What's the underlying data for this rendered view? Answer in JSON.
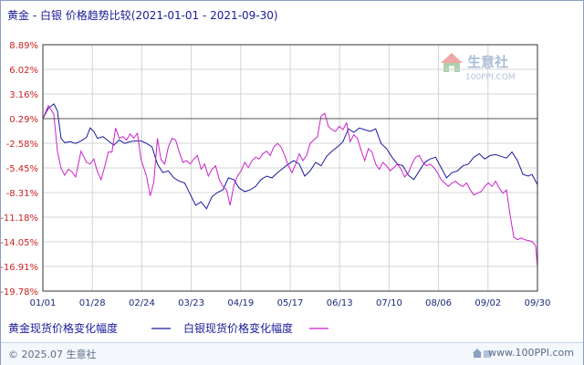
{
  "header": {
    "title": "黄金 - 白银  价格趋势比较(2021-01-01 - 2021-09-30)"
  },
  "watermark": {
    "name": "生意社",
    "url": "100PPI.COM"
  },
  "footer": {
    "copyright": "© 2025.07 生意社",
    "site": "www.100PPI.com"
  },
  "colors": {
    "gold": "#1a1aa0",
    "silver": "#cc22cc",
    "axis": "#333333",
    "grid": "#d4d4d4"
  },
  "chart_data": {
    "type": "line",
    "title": "黄金 - 白银  价格趋势比较(2021-01-01 - 2021-09-30)",
    "x_ticks": [
      "01/01",
      "01/28",
      "02/24",
      "03/23",
      "04/19",
      "05/17",
      "06/13",
      "07/10",
      "08/06",
      "09/02",
      "09/30"
    ],
    "y_ticks": [
      "8.89%",
      "6.02%",
      "3.16%",
      "0.29%",
      "-2.58%",
      "-5.45%",
      "-8.31%",
      "-11.18%",
      "-14.05%",
      "-16.91%",
      "-19.78%"
    ],
    "ylim": [
      -19.78,
      8.89
    ],
    "xlim": [
      0,
      272
    ],
    "grid": true,
    "baseline": 0.29,
    "legend_position": "bottom",
    "series": [
      {
        "name": "黄金现货价格变化幅度",
        "color": "#1a1aa0",
        "points": [
          [
            0,
            0.29
          ],
          [
            3,
            1.5
          ],
          [
            6,
            2.0
          ],
          [
            8,
            1.2
          ],
          [
            10,
            -2.0
          ],
          [
            12,
            -2.5
          ],
          [
            15,
            -2.4
          ],
          [
            18,
            -2.6
          ],
          [
            21,
            -2.3
          ],
          [
            24,
            -1.9
          ],
          [
            26,
            -0.8
          ],
          [
            28,
            -1.2
          ],
          [
            30,
            -2.0
          ],
          [
            33,
            -1.8
          ],
          [
            36,
            -2.3
          ],
          [
            39,
            -2.8
          ],
          [
            42,
            -2.2
          ],
          [
            45,
            -2.6
          ],
          [
            48,
            -2.4
          ],
          [
            51,
            -2.3
          ],
          [
            54,
            -2.3
          ],
          [
            57,
            -2.6
          ],
          [
            60,
            -3.0
          ],
          [
            63,
            -5.0
          ],
          [
            66,
            -6.0
          ],
          [
            69,
            -5.8
          ],
          [
            72,
            -6.6
          ],
          [
            75,
            -7.0
          ],
          [
            78,
            -7.2
          ],
          [
            81,
            -8.5
          ],
          [
            84,
            -9.8
          ],
          [
            87,
            -9.4
          ],
          [
            90,
            -10.2
          ],
          [
            93,
            -8.8
          ],
          [
            96,
            -8.3
          ],
          [
            99,
            -8.0
          ],
          [
            102,
            -6.6
          ],
          [
            105,
            -6.8
          ],
          [
            108,
            -7.8
          ],
          [
            111,
            -8.2
          ],
          [
            114,
            -8.0
          ],
          [
            117,
            -7.6
          ],
          [
            120,
            -6.8
          ],
          [
            123,
            -6.4
          ],
          [
            126,
            -6.6
          ],
          [
            129,
            -6.0
          ],
          [
            132,
            -5.5
          ],
          [
            135,
            -5.0
          ],
          [
            138,
            -4.6
          ],
          [
            141,
            -5.0
          ],
          [
            144,
            -6.4
          ],
          [
            147,
            -5.8
          ],
          [
            150,
            -4.8
          ],
          [
            153,
            -5.2
          ],
          [
            156,
            -4.1
          ],
          [
            159,
            -3.5
          ],
          [
            162,
            -3.0
          ],
          [
            165,
            -2.4
          ],
          [
            168,
            -0.9
          ],
          [
            171,
            -1.3
          ],
          [
            174,
            -0.8
          ],
          [
            177,
            -1.0
          ],
          [
            180,
            -1.2
          ],
          [
            183,
            -0.9
          ],
          [
            186,
            -2.6
          ],
          [
            189,
            -3.2
          ],
          [
            192,
            -4.2
          ],
          [
            195,
            -5.0
          ],
          [
            198,
            -5.2
          ],
          [
            201,
            -6.3
          ],
          [
            204,
            -6.8
          ],
          [
            207,
            -5.8
          ],
          [
            210,
            -4.8
          ],
          [
            213,
            -4.4
          ],
          [
            216,
            -4.2
          ],
          [
            219,
            -5.4
          ],
          [
            222,
            -6.6
          ],
          [
            225,
            -6.0
          ],
          [
            228,
            -5.8
          ],
          [
            231,
            -5.2
          ],
          [
            234,
            -5.0
          ],
          [
            237,
            -4.2
          ],
          [
            240,
            -3.8
          ],
          [
            243,
            -4.4
          ],
          [
            246,
            -4.0
          ],
          [
            249,
            -3.9
          ],
          [
            252,
            -4.1
          ],
          [
            255,
            -4.3
          ],
          [
            258,
            -3.6
          ],
          [
            261,
            -4.6
          ],
          [
            264,
            -6.2
          ],
          [
            267,
            -6.4
          ],
          [
            269,
            -6.2
          ],
          [
            272,
            -7.4
          ]
        ]
      },
      {
        "name": "白银现货价格变化幅度",
        "color": "#cc22cc",
        "points": [
          [
            0,
            0.29
          ],
          [
            3,
            1.8
          ],
          [
            6,
            0.8
          ],
          [
            8,
            -3.5
          ],
          [
            10,
            -5.5
          ],
          [
            12,
            -6.3
          ],
          [
            14,
            -5.6
          ],
          [
            16,
            -5.9
          ],
          [
            18,
            -6.5
          ],
          [
            21,
            -3.5
          ],
          [
            24,
            -4.8
          ],
          [
            26,
            -5.0
          ],
          [
            28,
            -4.4
          ],
          [
            30,
            -5.9
          ],
          [
            32,
            -6.8
          ],
          [
            34,
            -5.3
          ],
          [
            36,
            -3.6
          ],
          [
            38,
            -3.6
          ],
          [
            40,
            -0.8
          ],
          [
            42,
            -2.0
          ],
          [
            44,
            -1.8
          ],
          [
            46,
            -2.2
          ],
          [
            48,
            -1.5
          ],
          [
            50,
            -2.0
          ],
          [
            52,
            -1.4
          ],
          [
            54,
            -4.5
          ],
          [
            57,
            -6.4
          ],
          [
            59,
            -8.7
          ],
          [
            61,
            -7.1
          ],
          [
            63,
            -2.0
          ],
          [
            65,
            -4.5
          ],
          [
            67,
            -5.0
          ],
          [
            69,
            -3.0
          ],
          [
            71,
            -2.0
          ],
          [
            73,
            -2.2
          ],
          [
            75,
            -3.6
          ],
          [
            77,
            -4.8
          ],
          [
            79,
            -4.6
          ],
          [
            81,
            -5.0
          ],
          [
            83,
            -4.4
          ],
          [
            85,
            -4.0
          ],
          [
            87,
            -5.6
          ],
          [
            89,
            -5.0
          ],
          [
            91,
            -6.4
          ],
          [
            93,
            -5.6
          ],
          [
            95,
            -5.2
          ],
          [
            97,
            -6.8
          ],
          [
            99,
            -7.6
          ],
          [
            101,
            -8.0
          ],
          [
            103,
            -9.8
          ],
          [
            105,
            -7.5
          ],
          [
            107,
            -6.4
          ],
          [
            109,
            -5.8
          ],
          [
            111,
            -4.8
          ],
          [
            113,
            -5.4
          ],
          [
            115,
            -4.6
          ],
          [
            117,
            -4.2
          ],
          [
            119,
            -4.4
          ],
          [
            121,
            -3.8
          ],
          [
            123,
            -3.5
          ],
          [
            125,
            -4.0
          ],
          [
            127,
            -3.0
          ],
          [
            129,
            -2.6
          ],
          [
            131,
            -3.0
          ],
          [
            133,
            -4.0
          ],
          [
            135,
            -5.2
          ],
          [
            137,
            -6.0
          ],
          [
            139,
            -5.0
          ],
          [
            141,
            -3.8
          ],
          [
            143,
            -4.6
          ],
          [
            145,
            -4.0
          ],
          [
            147,
            -2.6
          ],
          [
            149,
            -2.2
          ],
          [
            151,
            -1.8
          ],
          [
            153,
            0.6
          ],
          [
            155,
            0.9
          ],
          [
            157,
            -0.6
          ],
          [
            159,
            -1.0
          ],
          [
            161,
            -1.2
          ],
          [
            163,
            -0.6
          ],
          [
            165,
            -1.0
          ],
          [
            167,
            -0.2
          ],
          [
            169,
            -2.4
          ],
          [
            171,
            -1.6
          ],
          [
            173,
            -2.0
          ],
          [
            175,
            -3.4
          ],
          [
            177,
            -4.6
          ],
          [
            179,
            -3.2
          ],
          [
            181,
            -3.6
          ],
          [
            183,
            -5.0
          ],
          [
            185,
            -5.6
          ],
          [
            187,
            -4.8
          ],
          [
            189,
            -5.2
          ],
          [
            191,
            -5.8
          ],
          [
            193,
            -5.4
          ],
          [
            195,
            -5.0
          ],
          [
            197,
            -5.6
          ],
          [
            199,
            -6.5
          ],
          [
            201,
            -6.0
          ],
          [
            203,
            -5.0
          ],
          [
            205,
            -4.2
          ],
          [
            207,
            -4.0
          ],
          [
            209,
            -4.8
          ],
          [
            211,
            -5.2
          ],
          [
            213,
            -5.0
          ],
          [
            215,
            -5.4
          ],
          [
            217,
            -6.0
          ],
          [
            219,
            -6.8
          ],
          [
            221,
            -7.2
          ],
          [
            223,
            -7.6
          ],
          [
            225,
            -7.2
          ],
          [
            227,
            -7.0
          ],
          [
            229,
            -7.4
          ],
          [
            231,
            -7.6
          ],
          [
            233,
            -7.2
          ],
          [
            235,
            -8.0
          ],
          [
            237,
            -8.6
          ],
          [
            239,
            -8.4
          ],
          [
            241,
            -8.2
          ],
          [
            243,
            -7.6
          ],
          [
            245,
            -7.2
          ],
          [
            247,
            -7.6
          ],
          [
            249,
            -7.0
          ],
          [
            251,
            -7.8
          ],
          [
            253,
            -8.4
          ],
          [
            255,
            -8.0
          ],
          [
            257,
            -11.0
          ],
          [
            259,
            -13.5
          ],
          [
            261,
            -13.8
          ],
          [
            263,
            -13.6
          ],
          [
            265,
            -13.8
          ],
          [
            267,
            -13.9
          ],
          [
            269,
            -14.0
          ],
          [
            271,
            -14.5
          ],
          [
            272,
            -17.0
          ]
        ]
      }
    ]
  }
}
